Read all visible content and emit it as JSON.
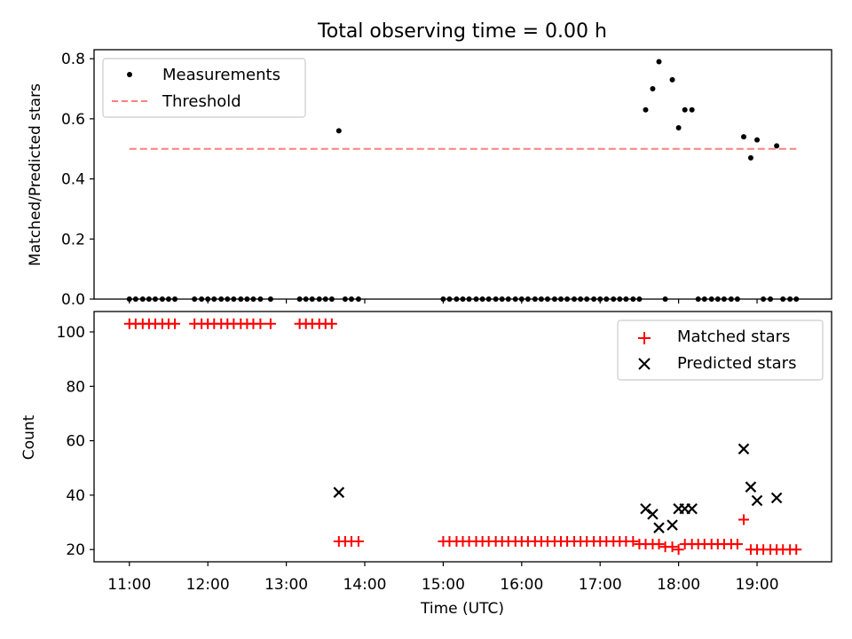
{
  "chart_data": [
    {
      "type": "scatter",
      "panel": "top",
      "title": "Total observing time = 0.00 h",
      "xlabel": "",
      "ylabel": "Matched/Predicted stars",
      "xlim": [
        10.55,
        19.95
      ],
      "ylim": [
        0.0,
        0.83
      ],
      "yticks": [
        0.0,
        0.2,
        0.4,
        0.6,
        0.8
      ],
      "ytick_labels": [
        "0.0",
        "0.2",
        "0.4",
        "0.6",
        "0.8"
      ],
      "xticks": [
        11,
        12,
        13,
        14,
        15,
        16,
        17,
        18,
        19
      ],
      "legend": {
        "placement": "top-left",
        "entries": [
          "Measurements",
          "Threshold"
        ]
      },
      "threshold": {
        "name": "Threshold",
        "y": 0.5,
        "x": [
          11.0,
          19.5
        ],
        "color": "#ff7f7f"
      },
      "series": [
        {
          "name": "Measurements",
          "color": "#000000",
          "x": [
            11.0,
            11.08,
            11.17,
            11.25,
            11.33,
            11.42,
            11.5,
            11.58,
            11.83,
            11.92,
            12.0,
            12.08,
            12.17,
            12.25,
            12.33,
            12.42,
            12.5,
            12.58,
            12.67,
            12.8,
            13.17,
            13.25,
            13.33,
            13.42,
            13.5,
            13.58,
            13.67,
            13.75,
            13.83,
            13.92,
            15.0,
            15.08,
            15.17,
            15.25,
            15.33,
            15.42,
            15.5,
            15.58,
            15.67,
            15.75,
            15.83,
            15.92,
            16.0,
            16.08,
            16.17,
            16.25,
            16.33,
            16.42,
            16.5,
            16.58,
            16.67,
            16.75,
            16.83,
            16.92,
            17.0,
            17.08,
            17.17,
            17.25,
            17.33,
            17.42,
            17.5,
            17.58,
            17.67,
            17.75,
            17.83,
            17.92,
            18.0,
            18.08,
            18.17,
            18.25,
            18.33,
            18.42,
            18.5,
            18.58,
            18.67,
            18.75,
            18.83,
            18.92,
            19.0,
            19.08,
            19.17,
            19.25,
            19.33,
            19.42,
            19.5
          ],
          "y": [
            0,
            0,
            0,
            0,
            0,
            0,
            0,
            0,
            0,
            0,
            0,
            0,
            0,
            0,
            0,
            0,
            0,
            0,
            0,
            0,
            0,
            0,
            0,
            0,
            0,
            0,
            0.56,
            0,
            0,
            0,
            0,
            0,
            0,
            0,
            0,
            0,
            0,
            0,
            0,
            0,
            0,
            0,
            0,
            0,
            0,
            0,
            0,
            0,
            0,
            0,
            0,
            0,
            0,
            0,
            0,
            0,
            0,
            0,
            0,
            0,
            0,
            0.63,
            0.7,
            0.79,
            0,
            0.73,
            0.57,
            0.63,
            0.63,
            0,
            0,
            0,
            0,
            0,
            0,
            0,
            0.54,
            0.47,
            0.53,
            0,
            0,
            0.51,
            0,
            0,
            0
          ]
        }
      ]
    },
    {
      "type": "scatter",
      "panel": "bottom",
      "title": "",
      "xlabel": "Time (UTC)",
      "ylabel": "Count",
      "xlim": [
        10.55,
        19.95
      ],
      "ylim": [
        15.5,
        107.5
      ],
      "yticks": [
        20,
        40,
        60,
        80,
        100
      ],
      "ytick_labels": [
        "20",
        "40",
        "60",
        "80",
        "100"
      ],
      "xticks": [
        11,
        12,
        13,
        14,
        15,
        16,
        17,
        18,
        19
      ],
      "xtick_labels": [
        "11:00",
        "12:00",
        "13:00",
        "14:00",
        "15:00",
        "16:00",
        "17:00",
        "18:00",
        "19:00"
      ],
      "legend": {
        "placement": "top-right",
        "entries": [
          "Matched stars",
          "Predicted stars"
        ]
      },
      "series": [
        {
          "name": "Matched stars",
          "marker": "plus",
          "color": "#ff0000",
          "x": [
            11.0,
            11.08,
            11.17,
            11.25,
            11.33,
            11.42,
            11.5,
            11.58,
            11.83,
            11.92,
            12.0,
            12.08,
            12.17,
            12.25,
            12.33,
            12.42,
            12.5,
            12.58,
            12.67,
            12.8,
            13.17,
            13.25,
            13.33,
            13.42,
            13.5,
            13.58,
            13.67,
            13.75,
            13.83,
            13.92,
            15.0,
            15.08,
            15.17,
            15.25,
            15.33,
            15.42,
            15.5,
            15.58,
            15.67,
            15.75,
            15.83,
            15.92,
            16.0,
            16.08,
            16.17,
            16.25,
            16.33,
            16.42,
            16.5,
            16.58,
            16.67,
            16.75,
            16.83,
            16.92,
            17.0,
            17.08,
            17.17,
            17.25,
            17.33,
            17.42,
            17.5,
            17.58,
            17.67,
            17.75,
            17.83,
            17.92,
            18.0,
            18.08,
            18.17,
            18.25,
            18.33,
            18.42,
            18.5,
            18.58,
            18.67,
            18.75,
            18.83,
            18.92,
            19.0,
            19.08,
            19.17,
            19.25,
            19.33,
            19.42,
            19.5
          ],
          "y": [
            103,
            103,
            103,
            103,
            103,
            103,
            103,
            103,
            103,
            103,
            103,
            103,
            103,
            103,
            103,
            103,
            103,
            103,
            103,
            103,
            103,
            103,
            103,
            103,
            103,
            103,
            23,
            23,
            23,
            23,
            23,
            23,
            23,
            23,
            23,
            23,
            23,
            23,
            23,
            23,
            23,
            23,
            23,
            23,
            23,
            23,
            23,
            23,
            23,
            23,
            23,
            23,
            23,
            23,
            23,
            23,
            23,
            23,
            23,
            23,
            22,
            22,
            22,
            22,
            21,
            21,
            20,
            22,
            22,
            22,
            22,
            22,
            22,
            22,
            22,
            22,
            31,
            20,
            20,
            20,
            20,
            20,
            20,
            20,
            20
          ]
        },
        {
          "name": "Predicted stars",
          "marker": "x",
          "color": "#000000",
          "x": [
            13.67,
            17.58,
            17.67,
            17.75,
            17.92,
            18.0,
            18.08,
            18.17,
            18.83,
            18.92,
            19.0,
            19.25
          ],
          "y": [
            41,
            35,
            33,
            28,
            29,
            35,
            35,
            35,
            57,
            43,
            38,
            39
          ]
        }
      ]
    }
  ]
}
